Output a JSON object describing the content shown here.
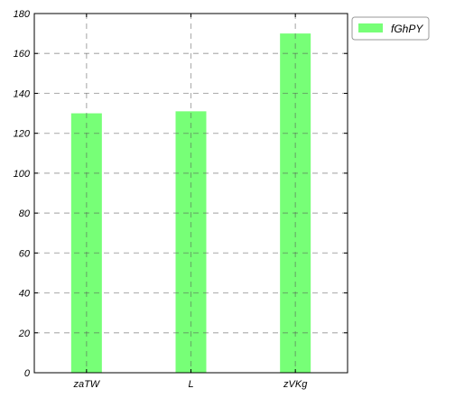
{
  "chart_data": {
    "type": "bar",
    "categories": [
      "zaTW",
      "L",
      "zVKg"
    ],
    "series": [
      {
        "name": "fGhPY",
        "values": [
          130,
          131,
          170
        ]
      }
    ],
    "title": "",
    "xlabel": "",
    "ylabel": "",
    "ylim": [
      0,
      180
    ],
    "yticks": [
      0,
      20,
      40,
      60,
      80,
      100,
      120,
      140,
      160,
      180
    ],
    "grid": true,
    "legend_position": "outside-top-right",
    "colors": {
      "bar": "#77ff77",
      "grid": "#b0b0b0",
      "axis": "#000000"
    }
  }
}
